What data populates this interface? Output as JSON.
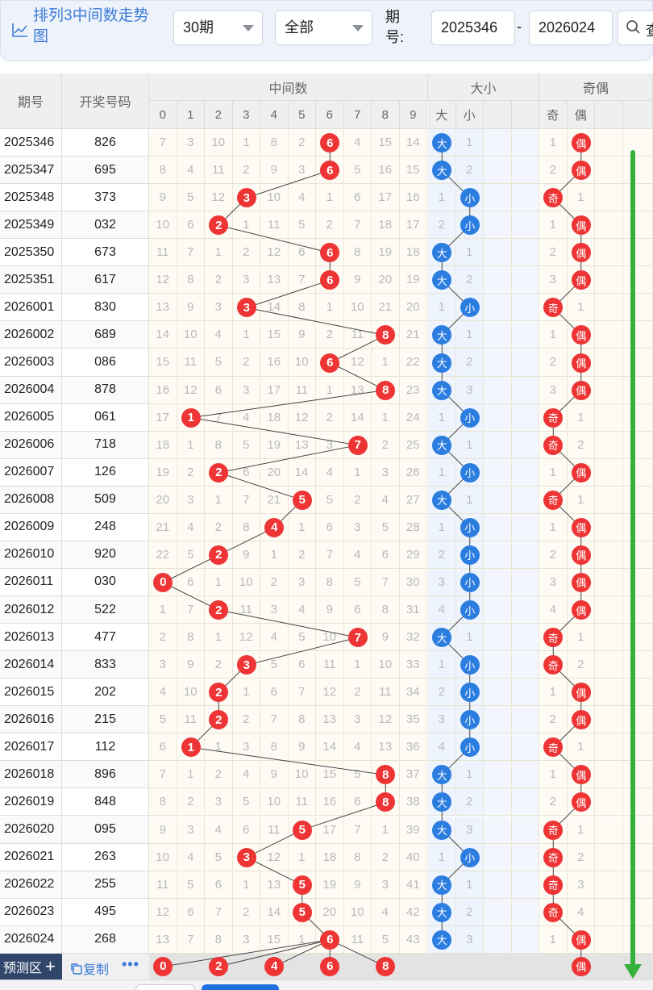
{
  "toolbar": {
    "title": "排列3中间数走势图",
    "period_select": "30期",
    "filter_select": "全部",
    "period_label": "期号:",
    "from_period": "2025346",
    "range_dash": "-",
    "to_period": "2026024",
    "search_label": "查"
  },
  "headers": {
    "period": "期号",
    "winning_number": "开奖号码",
    "middle_group": "中间数",
    "size_group": "大小",
    "parity_group": "奇偶",
    "digits": [
      "0",
      "1",
      "2",
      "3",
      "4",
      "5",
      "6",
      "7",
      "8",
      "9"
    ],
    "size_sub": [
      "大",
      "小"
    ],
    "parity_sub": [
      "奇",
      "偶"
    ]
  },
  "rows": [
    {
      "period": "2025346",
      "number": "826",
      "mid": [
        7,
        3,
        10,
        1,
        8,
        2,
        null,
        4,
        15,
        14
      ],
      "midhit": 6,
      "size": "大",
      "sizeMiss": 1,
      "parity": "偶",
      "parityMiss": 1
    },
    {
      "period": "2025347",
      "number": "695",
      "mid": [
        8,
        4,
        11,
        2,
        9,
        3,
        null,
        5,
        16,
        15
      ],
      "midhit": 6,
      "size": "大",
      "sizeMiss": 2,
      "parity": "偶",
      "parityMiss": 2
    },
    {
      "period": "2025348",
      "number": "373",
      "mid": [
        9,
        5,
        12,
        null,
        10,
        4,
        1,
        6,
        17,
        16
      ],
      "midhit": 3,
      "size": "小",
      "sizeMiss": 1,
      "parity": "奇",
      "parityMiss": 1
    },
    {
      "period": "2025349",
      "number": "032",
      "mid": [
        10,
        6,
        null,
        1,
        11,
        5,
        2,
        7,
        18,
        17
      ],
      "midhit": 2,
      "size": "小",
      "sizeMiss": 2,
      "parity": "偶",
      "parityMiss": 1
    },
    {
      "period": "2025350",
      "number": "673",
      "mid": [
        11,
        7,
        1,
        2,
        12,
        6,
        null,
        8,
        19,
        18
      ],
      "midhit": 6,
      "size": "大",
      "sizeMiss": 1,
      "parity": "偶",
      "parityMiss": 2
    },
    {
      "period": "2025351",
      "number": "617",
      "mid": [
        12,
        8,
        2,
        3,
        13,
        7,
        null,
        9,
        20,
        19
      ],
      "midhit": 6,
      "size": "大",
      "sizeMiss": 2,
      "parity": "偶",
      "parityMiss": 3
    },
    {
      "period": "2026001",
      "number": "830",
      "mid": [
        13,
        9,
        3,
        null,
        14,
        8,
        1,
        10,
        21,
        20
      ],
      "midhit": 3,
      "size": "小",
      "sizeMiss": 1,
      "parity": "奇",
      "parityMiss": 1
    },
    {
      "period": "2026002",
      "number": "689",
      "mid": [
        14,
        10,
        4,
        1,
        15,
        9,
        2,
        11,
        null,
        21
      ],
      "midhit": 8,
      "size": "大",
      "sizeMiss": 1,
      "parity": "偶",
      "parityMiss": 1
    },
    {
      "period": "2026003",
      "number": "086",
      "mid": [
        15,
        11,
        5,
        2,
        16,
        10,
        null,
        12,
        1,
        22
      ],
      "midhit": 6,
      "size": "大",
      "sizeMiss": 2,
      "parity": "偶",
      "parityMiss": 2
    },
    {
      "period": "2026004",
      "number": "878",
      "mid": [
        16,
        12,
        6,
        3,
        17,
        11,
        1,
        13,
        null,
        23
      ],
      "midhit": 8,
      "size": "大",
      "sizeMiss": 3,
      "parity": "偶",
      "parityMiss": 3
    },
    {
      "period": "2026005",
      "number": "061",
      "mid": [
        17,
        null,
        7,
        4,
        18,
        12,
        2,
        14,
        1,
        24
      ],
      "midhit": 1,
      "size": "小",
      "sizeMiss": 1,
      "parity": "奇",
      "parityMiss": 1
    },
    {
      "period": "2026006",
      "number": "718",
      "mid": [
        18,
        1,
        8,
        5,
        19,
        13,
        3,
        null,
        2,
        25
      ],
      "midhit": 7,
      "size": "大",
      "sizeMiss": 1,
      "parity": "奇",
      "parityMiss": 2
    },
    {
      "period": "2026007",
      "number": "126",
      "mid": [
        19,
        2,
        null,
        6,
        20,
        14,
        4,
        1,
        3,
        26
      ],
      "midhit": 2,
      "size": "小",
      "sizeMiss": 1,
      "parity": "偶",
      "parityMiss": 1
    },
    {
      "period": "2026008",
      "number": "509",
      "mid": [
        20,
        3,
        1,
        7,
        21,
        null,
        5,
        2,
        4,
        27
      ],
      "midhit": 5,
      "size": "大",
      "sizeMiss": 1,
      "parity": "奇",
      "parityMiss": 1
    },
    {
      "period": "2026009",
      "number": "248",
      "mid": [
        21,
        4,
        2,
        8,
        null,
        1,
        6,
        3,
        5,
        28
      ],
      "midhit": 4,
      "size": "小",
      "sizeMiss": 1,
      "parity": "偶",
      "parityMiss": 1
    },
    {
      "period": "2026010",
      "number": "920",
      "mid": [
        22,
        5,
        null,
        9,
        1,
        2,
        7,
        4,
        6,
        29
      ],
      "midhit": 2,
      "size": "小",
      "sizeMiss": 2,
      "parity": "偶",
      "parityMiss": 2
    },
    {
      "period": "2026011",
      "number": "030",
      "mid": [
        null,
        6,
        1,
        10,
        2,
        3,
        8,
        5,
        7,
        30
      ],
      "midhit": 0,
      "size": "小",
      "sizeMiss": 3,
      "parity": "偶",
      "parityMiss": 3
    },
    {
      "period": "2026012",
      "number": "522",
      "mid": [
        1,
        7,
        null,
        11,
        3,
        4,
        9,
        6,
        8,
        31
      ],
      "midhit": 2,
      "size": "小",
      "sizeMiss": 4,
      "parity": "偶",
      "parityMiss": 4
    },
    {
      "period": "2026013",
      "number": "477",
      "mid": [
        2,
        8,
        1,
        12,
        4,
        5,
        10,
        null,
        9,
        32
      ],
      "midhit": 7,
      "size": "大",
      "sizeMiss": 1,
      "parity": "奇",
      "parityMiss": 1
    },
    {
      "period": "2026014",
      "number": "833",
      "mid": [
        3,
        9,
        2,
        null,
        5,
        6,
        11,
        1,
        10,
        33
      ],
      "midhit": 3,
      "size": "小",
      "sizeMiss": 1,
      "parity": "奇",
      "parityMiss": 2
    },
    {
      "period": "2026015",
      "number": "202",
      "mid": [
        4,
        10,
        null,
        1,
        6,
        7,
        12,
        2,
        11,
        34
      ],
      "midhit": 2,
      "size": "小",
      "sizeMiss": 2,
      "parity": "偶",
      "parityMiss": 1
    },
    {
      "period": "2026016",
      "number": "215",
      "mid": [
        5,
        11,
        null,
        2,
        7,
        8,
        13,
        3,
        12,
        35
      ],
      "midhit": 2,
      "size": "小",
      "sizeMiss": 3,
      "parity": "偶",
      "parityMiss": 2
    },
    {
      "period": "2026017",
      "number": "112",
      "mid": [
        6,
        null,
        1,
        3,
        8,
        9,
        14,
        4,
        13,
        36
      ],
      "midhit": 1,
      "size": "小",
      "sizeMiss": 4,
      "parity": "奇",
      "parityMiss": 1
    },
    {
      "period": "2026018",
      "number": "896",
      "mid": [
        7,
        1,
        2,
        4,
        9,
        10,
        15,
        5,
        null,
        37
      ],
      "midhit": 8,
      "size": "大",
      "sizeMiss": 1,
      "parity": "偶",
      "parityMiss": 1
    },
    {
      "period": "2026019",
      "number": "848",
      "mid": [
        8,
        2,
        3,
        5,
        10,
        11,
        16,
        6,
        null,
        38
      ],
      "midhit": 8,
      "size": "大",
      "sizeMiss": 2,
      "parity": "偶",
      "parityMiss": 2
    },
    {
      "period": "2026020",
      "number": "095",
      "mid": [
        9,
        3,
        4,
        6,
        11,
        null,
        17,
        7,
        1,
        39
      ],
      "midhit": 5,
      "size": "大",
      "sizeMiss": 3,
      "parity": "奇",
      "parityMiss": 1
    },
    {
      "period": "2026021",
      "number": "263",
      "mid": [
        10,
        4,
        5,
        null,
        12,
        1,
        18,
        8,
        2,
        40
      ],
      "midhit": 3,
      "size": "小",
      "sizeMiss": 1,
      "parity": "奇",
      "parityMiss": 2
    },
    {
      "period": "2026022",
      "number": "255",
      "mid": [
        11,
        5,
        6,
        1,
        13,
        null,
        19,
        9,
        3,
        41
      ],
      "midhit": 5,
      "size": "大",
      "sizeMiss": 1,
      "parity": "奇",
      "parityMiss": 3
    },
    {
      "period": "2026023",
      "number": "495",
      "mid": [
        12,
        6,
        7,
        2,
        14,
        null,
        20,
        10,
        4,
        42
      ],
      "midhit": 5,
      "size": "大",
      "sizeMiss": 2,
      "parity": "奇",
      "parityMiss": 4
    },
    {
      "period": "2026024",
      "number": "268",
      "mid": [
        13,
        7,
        8,
        3,
        15,
        1,
        null,
        11,
        5,
        43
      ],
      "midhit": 6,
      "size": "大",
      "sizeMiss": 3,
      "parity": "偶",
      "parityMiss": 1
    }
  ],
  "prediction": {
    "label": "预测区",
    "plus": "+",
    "copy_label": "复制",
    "more": "•••",
    "digits": [
      0,
      2,
      4,
      6,
      8
    ],
    "parity": "偶"
  },
  "colors": {
    "accent": "#3d7bd9",
    "red_ball": "#ee3434",
    "blue_ball": "#2c7de0",
    "trend_arrow": "#35b03c"
  }
}
